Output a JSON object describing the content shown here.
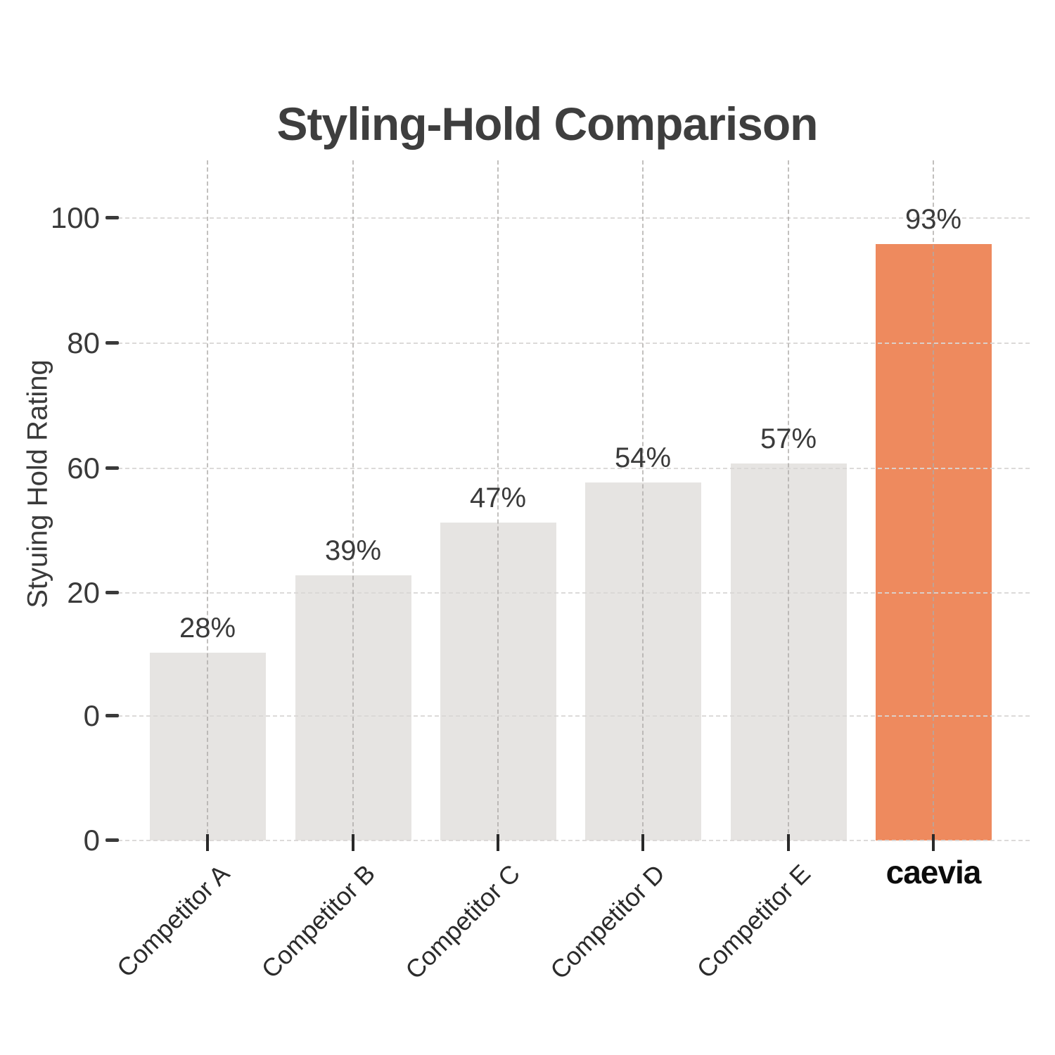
{
  "chart_data": {
    "type": "bar",
    "title": "Styling-Hold Comparison",
    "ylabel": "Styuing Hold Rating",
    "xlabel": "",
    "categories": [
      "Competitor A",
      "Competitor B",
      "Competitor C",
      "Competitor D",
      "Competitor E",
      "caevia"
    ],
    "values": [
      28,
      39,
      47,
      54,
      57,
      93
    ],
    "bar_labels": [
      "28%",
      "39%",
      "47%",
      "54%",
      "57%",
      "93%"
    ],
    "ytick_labels": [
      "100",
      "80",
      "60",
      "20",
      "0",
      "0"
    ],
    "ylim": [
      0,
      100
    ],
    "grid": "dashed",
    "legend": false,
    "highlight_category": "caevia",
    "highlight_index": 5,
    "colors": {
      "bar_default": "#e6e4e2",
      "bar_highlight": "#ee8a5e",
      "grid_horizontal": "#d9d7d5",
      "grid_vertical": "#aeaba9",
      "title_text": "#3e3e3e",
      "axis_text": "#3a3a3a",
      "brand_text": "#0c0c0c",
      "background": "#ffffff"
    }
  }
}
